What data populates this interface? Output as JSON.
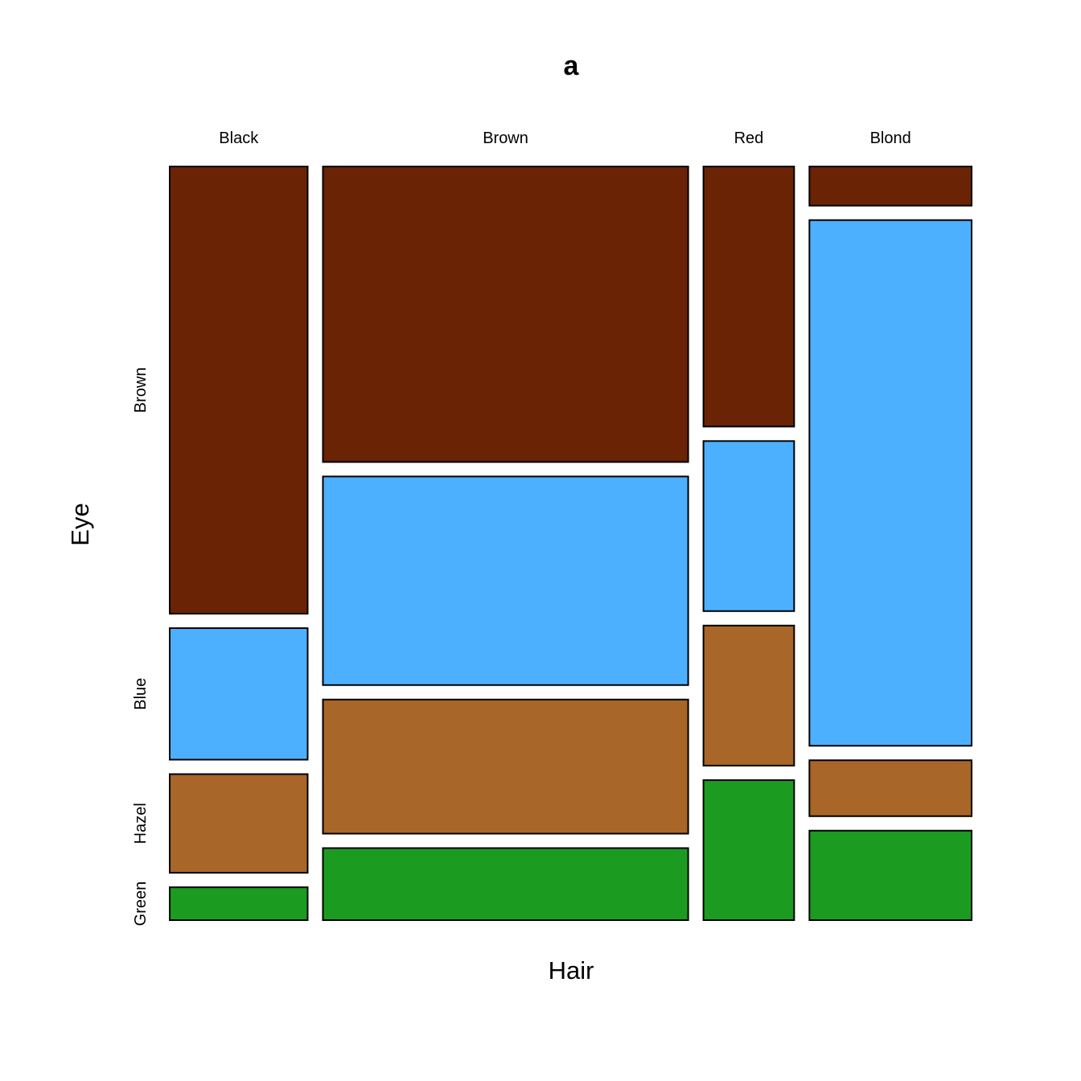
{
  "chart_data": {
    "type": "mosaic",
    "title": "a",
    "xlabel": "Hair",
    "ylabel": "Eye",
    "x_categories": [
      "Black",
      "Brown",
      "Red",
      "Blond"
    ],
    "y_categories": [
      "Brown",
      "Blue",
      "Hazel",
      "Green"
    ],
    "colors": {
      "Brown": "#6B2305",
      "Blue": "#4DB0FF",
      "Hazel": "#A86628",
      "Green": "#1C9B21"
    },
    "counts": {
      "Black": {
        "Brown": 68,
        "Blue": 20,
        "Hazel": 15,
        "Green": 5
      },
      "Brown": {
        "Brown": 119,
        "Blue": 84,
        "Hazel": 54,
        "Green": 29
      },
      "Red": {
        "Brown": 26,
        "Blue": 17,
        "Hazel": 14,
        "Green": 14
      },
      "Blond": {
        "Brown": 7,
        "Blue": 94,
        "Hazel": 10,
        "Green": 16
      }
    }
  }
}
